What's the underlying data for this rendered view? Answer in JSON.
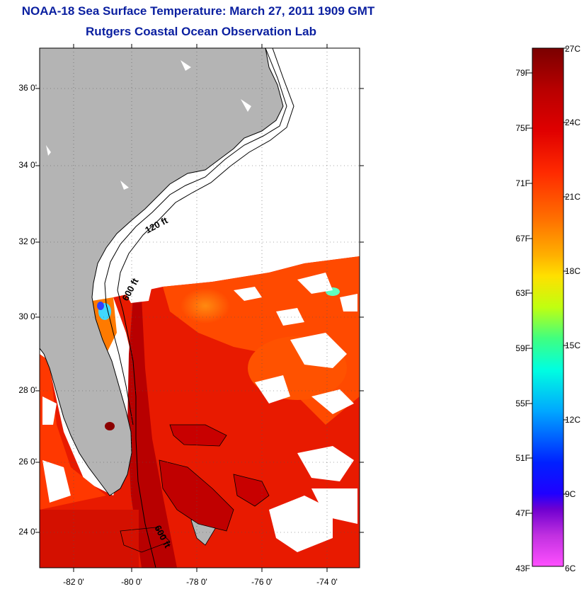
{
  "title": "NOAA-18 Sea Surface Temperature:  March 27, 2011 1909 GMT",
  "subtitle": "Rutgers Coastal Ocean Observation Lab",
  "map": {
    "lat_labels": [
      "36 0'",
      "34 0'",
      "32 0'",
      "30 0'",
      "28 0'",
      "26 0'",
      "24 0'"
    ],
    "lon_labels": [
      "-82 0'",
      "-80 0'",
      "-78 0'",
      "-76 0'",
      "-74 0'"
    ],
    "contour_labels": [
      "120 ft",
      "600 ft",
      "600 ft"
    ],
    "land_color": "#b4b4b4",
    "cloud_color": "#ffffff"
  },
  "colorbar": {
    "fahrenheit_labels": [
      "79F",
      "75F",
      "71F",
      "67F",
      "63F",
      "59F",
      "55F",
      "51F",
      "47F",
      "43F"
    ],
    "celsius_labels": [
      "27C",
      "24C",
      "21C",
      "18C",
      "15C",
      "12C",
      "9C",
      "6C"
    ],
    "range_celsius": [
      6,
      27
    ],
    "colors_top_to_bottom": [
      "#7a0000",
      "#d40000",
      "#ff3a00",
      "#ff8c00",
      "#ffd400",
      "#e8ff00",
      "#7dff30",
      "#00ffd0",
      "#00b0ff",
      "#0040ff",
      "#0000ff",
      "#6a00d8",
      "#b000ff",
      "#ff40ff"
    ]
  }
}
